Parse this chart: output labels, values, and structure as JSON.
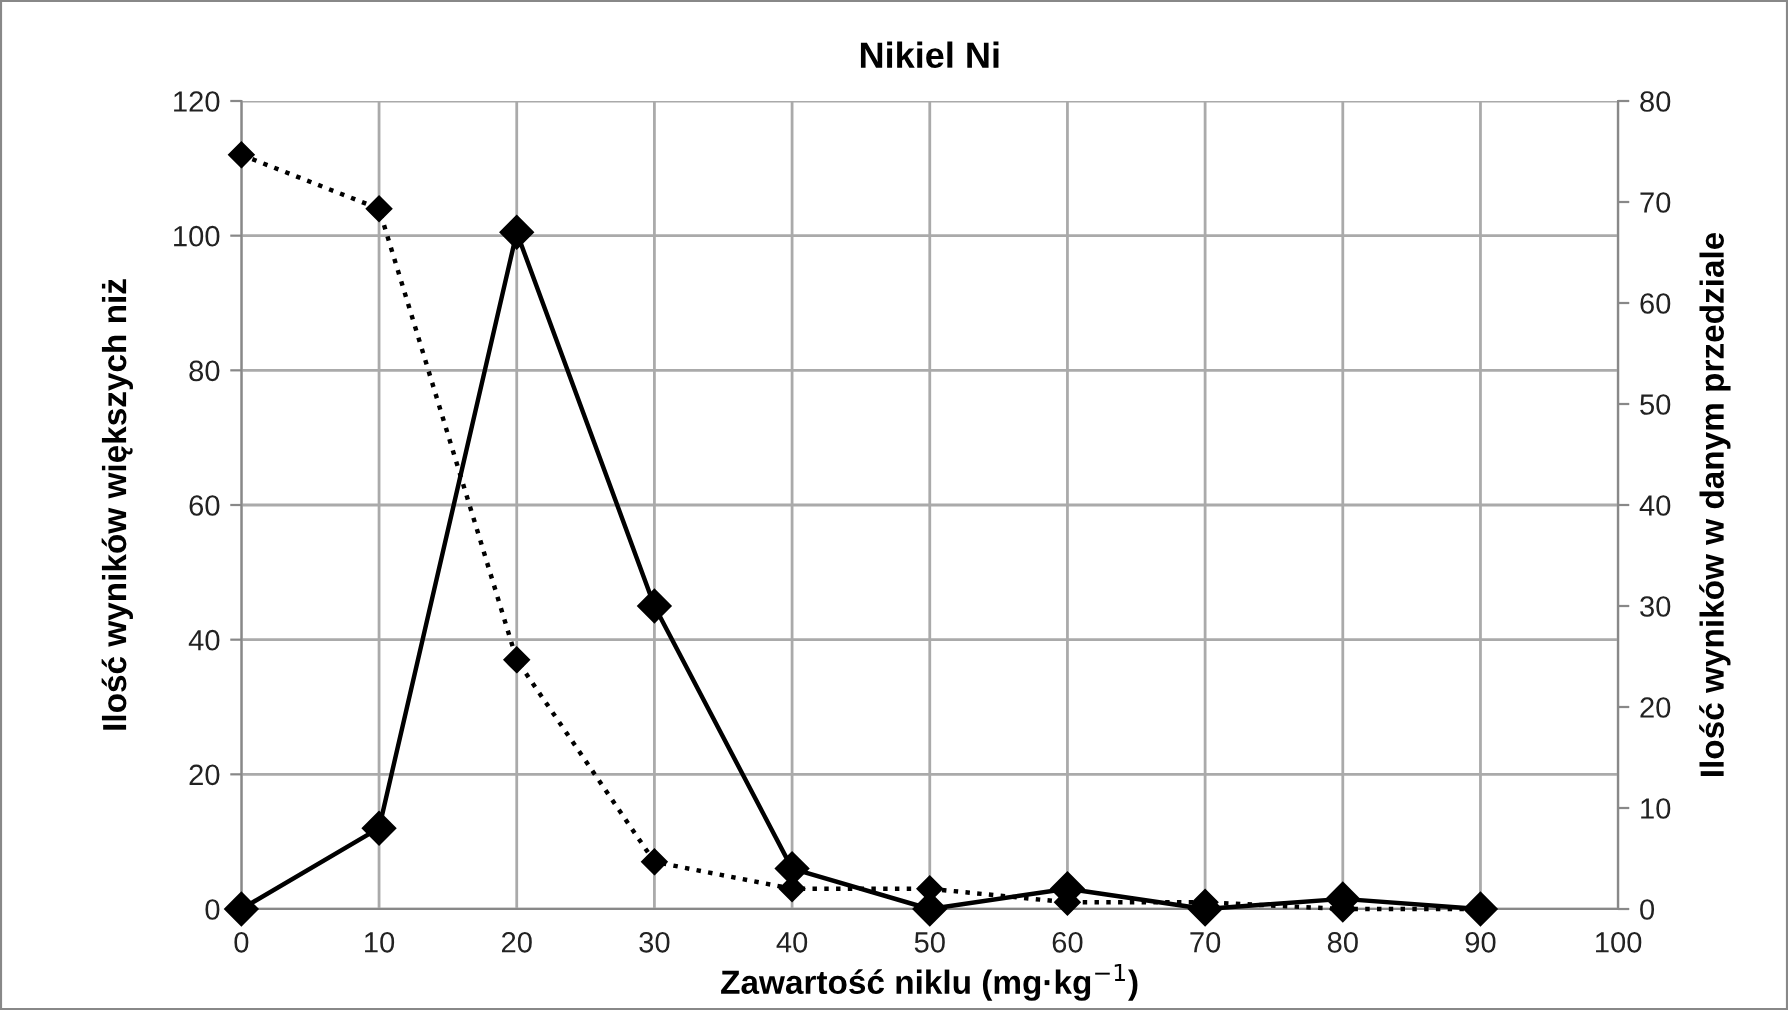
{
  "chart_data": {
    "type": "line",
    "title": "Nikiel Ni",
    "xlabel": "Zawartość niklu (mg·kg$^{−1}$)",
    "ylabel": "Ilość wyników większych niż",
    "y2label": "Ilość wyników w danym przedziale",
    "x": [
      0,
      10,
      20,
      30,
      40,
      50,
      60,
      70,
      80,
      90
    ],
    "series": [
      {
        "color": "#000000",
        "values": [
          112,
          104,
          37,
          7,
          3,
          3,
          1,
          1,
          0,
          0
        ],
        "line_style": "dotted",
        "marker": "diamond"
      },
      {
        "color": "#000000",
        "values": [
          0,
          8,
          67,
          30,
          4,
          0,
          2,
          0,
          1,
          0
        ],
        "axis": "y2",
        "line_style": "solid",
        "marker": "diamond"
      }
    ],
    "xlim": [
      0,
      100
    ],
    "xticks": [
      0,
      10,
      20,
      30,
      40,
      50,
      60,
      70,
      80,
      90,
      100
    ],
    "ylim": [
      0,
      120
    ],
    "yticks": [
      0,
      20,
      40,
      60,
      80,
      100,
      120
    ],
    "y2lim": [
      0,
      80
    ],
    "y2ticks": [
      0,
      10,
      20,
      30,
      40,
      50,
      60,
      70,
      80
    ],
    "grid": true,
    "legend": false
  }
}
